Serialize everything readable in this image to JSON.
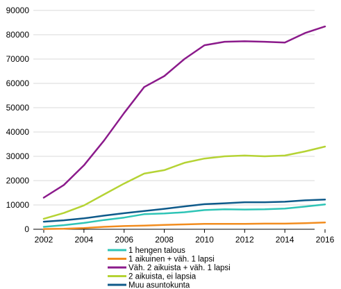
{
  "chart_data": {
    "type": "line",
    "title": "",
    "xlabel": "",
    "ylabel": "",
    "x": [
      2002,
      2003,
      2004,
      2005,
      2006,
      2007,
      2008,
      2009,
      2010,
      2011,
      2012,
      2013,
      2014,
      2015,
      2016
    ],
    "xticks": [
      "2002",
      "2004",
      "2006",
      "2008",
      "2010",
      "2012",
      "2014",
      "2016"
    ],
    "yticks": [
      "0",
      "10000",
      "20000",
      "30000",
      "40000",
      "50000",
      "60000",
      "70000",
      "80000",
      "90000"
    ],
    "xlim": [
      2002,
      2016
    ],
    "ylim": [
      0,
      90000
    ],
    "grid": "horizontal",
    "legend_position": "bottom",
    "series": [
      {
        "name": "1 hengen talous",
        "color": "#2ec4b6",
        "values": [
          1000,
          1700,
          2600,
          3800,
          4800,
          6200,
          6500,
          7000,
          7900,
          8200,
          8100,
          8200,
          8500,
          9300,
          10200
        ]
      },
      {
        "name": "1 aikuinen + väh. 1 lapsi",
        "color": "#f28c1e",
        "values": [
          100,
          200,
          500,
          1000,
          1300,
          1500,
          1800,
          2000,
          2200,
          2200,
          2200,
          2300,
          2300,
          2500,
          2800
        ]
      },
      {
        "name": "Väh. 2 aikuista + väh. 1 lapsi",
        "color": "#8b1a8b",
        "values": [
          13000,
          18200,
          26300,
          36500,
          47800,
          58500,
          63000,
          70000,
          75700,
          77100,
          77300,
          77100,
          76800,
          80700,
          83400
        ]
      },
      {
        "name": "2 aikuista, ei lapsia",
        "color": "#b5d334",
        "values": [
          4300,
          6700,
          9800,
          14300,
          18800,
          22900,
          24300,
          27300,
          29100,
          30000,
          30300,
          30000,
          30300,
          32000,
          34000
        ]
      },
      {
        "name": "Muu asuntokunta",
        "color": "#0e5a8a",
        "values": [
          3100,
          3700,
          4500,
          5600,
          6600,
          7500,
          8400,
          9400,
          10300,
          10700,
          11100,
          11100,
          11300,
          11900,
          12200
        ]
      }
    ]
  }
}
